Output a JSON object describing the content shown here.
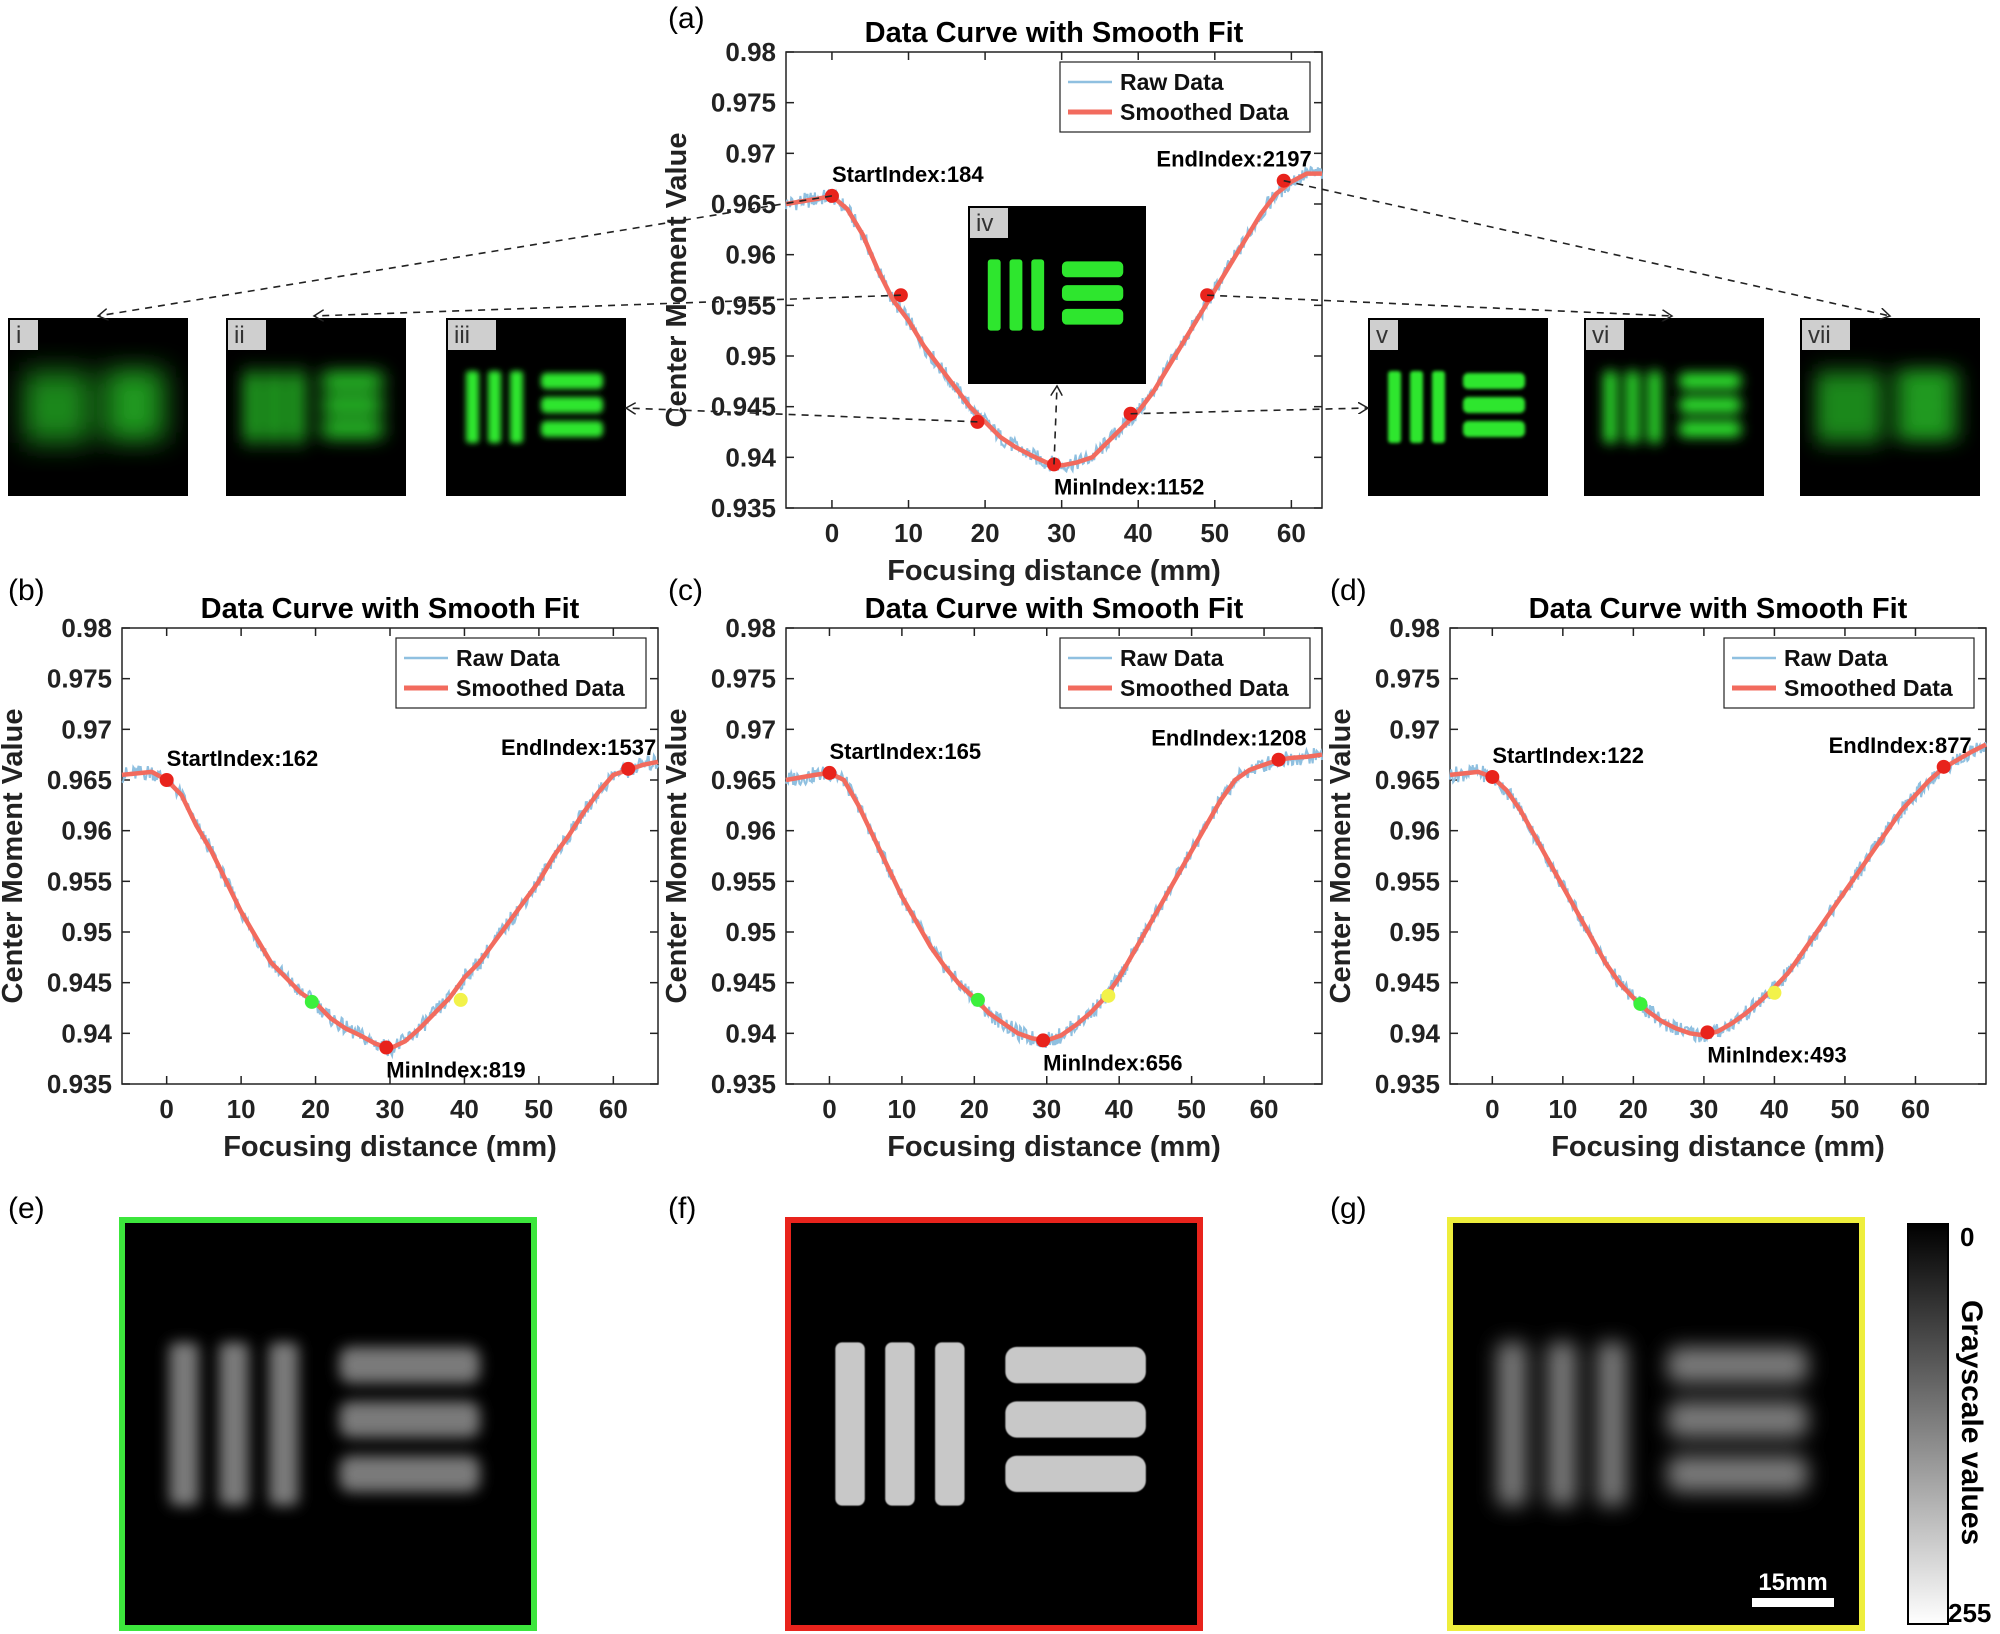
{
  "colors": {
    "raw": "#8fc0e0",
    "smooth": "#f26b5e",
    "marker_red": "#e8231c",
    "marker_green": "#3cf03c",
    "marker_yellow": "#f2f24a",
    "frame_green": "#3ce63c",
    "frame_red": "#e8231c",
    "frame_yellow": "#eeee3c"
  },
  "chart_data": [
    {
      "id": "a",
      "panel_label": "(a)",
      "type": "line",
      "title": "Data Curve with Smooth Fit",
      "xlabel": "Focusing distance (mm)",
      "ylabel": "Center Moment Value",
      "xlim": [
        -6,
        64
      ],
      "ylim": [
        0.935,
        0.98
      ],
      "xticks": [
        "0",
        "10",
        "20",
        "30",
        "40",
        "50",
        "60"
      ],
      "yticks": [
        "0.935",
        "0.94",
        "0.945",
        "0.95",
        "0.955",
        "0.96",
        "0.965",
        "0.97",
        "0.975",
        "0.98"
      ],
      "grid": false,
      "legend": {
        "placement": "top-right",
        "entries": [
          "Raw Data",
          "Smoothed Data"
        ]
      },
      "series": [
        {
          "name": "Raw Data",
          "x": [
            -6,
            -2,
            0,
            2,
            4,
            6,
            8,
            10,
            12,
            14,
            16,
            18,
            20,
            22,
            24,
            26,
            28,
            30,
            32,
            34,
            36,
            38,
            40,
            42,
            44,
            46,
            48,
            50,
            52,
            54,
            56,
            58,
            60,
            62,
            64
          ],
          "y": [
            0.965,
            0.9655,
            0.9658,
            0.9645,
            0.962,
            0.9585,
            0.9555,
            0.9535,
            0.951,
            0.949,
            0.947,
            0.945,
            0.9435,
            0.942,
            0.941,
            0.9402,
            0.9395,
            0.9392,
            0.9395,
            0.94,
            0.9415,
            0.943,
            0.9445,
            0.9465,
            0.949,
            0.9515,
            0.954,
            0.9565,
            0.959,
            0.9615,
            0.964,
            0.966,
            0.9672,
            0.968,
            0.968
          ]
        },
        {
          "name": "Smoothed Data",
          "x": [
            -6,
            -2,
            0,
            2,
            4,
            6,
            8,
            10,
            12,
            14,
            16,
            18,
            20,
            22,
            24,
            26,
            28,
            30,
            32,
            34,
            36,
            38,
            40,
            42,
            44,
            46,
            48,
            50,
            52,
            54,
            56,
            58,
            60,
            62,
            64
          ],
          "y": [
            0.965,
            0.9655,
            0.9658,
            0.9645,
            0.962,
            0.9585,
            0.9555,
            0.9535,
            0.951,
            0.949,
            0.947,
            0.945,
            0.9435,
            0.942,
            0.941,
            0.9402,
            0.9395,
            0.9392,
            0.9395,
            0.94,
            0.9415,
            0.943,
            0.9445,
            0.9465,
            0.949,
            0.9515,
            0.954,
            0.9565,
            0.959,
            0.9615,
            0.964,
            0.966,
            0.9672,
            0.968,
            0.968
          ]
        }
      ],
      "markers": [
        {
          "x": 0,
          "y": 0.9658,
          "color": "red",
          "label": "StartIndex:184"
        },
        {
          "x": 9,
          "y": 0.956,
          "color": "red",
          "label": ""
        },
        {
          "x": 19,
          "y": 0.9435,
          "color": "red",
          "label": ""
        },
        {
          "x": 29,
          "y": 0.9393,
          "color": "red",
          "label": "MinIndex:1152"
        },
        {
          "x": 39,
          "y": 0.9443,
          "color": "red",
          "label": ""
        },
        {
          "x": 49,
          "y": 0.956,
          "color": "red",
          "label": ""
        },
        {
          "x": 59,
          "y": 0.9673,
          "color": "red",
          "label": "EndIndex:2197"
        }
      ]
    },
    {
      "id": "b",
      "panel_label": "(b)",
      "type": "line",
      "title": "Data Curve with Smooth Fit",
      "xlabel": "Focusing distance (mm)",
      "ylabel": "Center Moment Value",
      "xlim": [
        -6,
        66
      ],
      "ylim": [
        0.935,
        0.98
      ],
      "xticks": [
        "0",
        "10",
        "20",
        "30",
        "40",
        "50",
        "60"
      ],
      "yticks": [
        "0.935",
        "0.94",
        "0.945",
        "0.95",
        "0.955",
        "0.96",
        "0.965",
        "0.97",
        "0.975",
        "0.98"
      ],
      "grid": false,
      "legend": {
        "placement": "top-right",
        "entries": [
          "Raw Data",
          "Smoothed Data"
        ]
      },
      "series": [
        {
          "name": "Raw Data",
          "x": [
            -6,
            -2,
            0,
            2,
            4,
            6,
            8,
            10,
            12,
            14,
            16,
            18,
            20,
            22,
            24,
            26,
            28,
            30,
            32,
            34,
            36,
            38,
            40,
            42,
            44,
            46,
            48,
            50,
            52,
            54,
            56,
            58,
            60,
            62,
            64,
            66
          ],
          "y": [
            0.9655,
            0.9658,
            0.965,
            0.9635,
            0.9605,
            0.958,
            0.955,
            0.952,
            0.9495,
            0.947,
            0.9455,
            0.944,
            0.943,
            0.9415,
            0.9405,
            0.9398,
            0.939,
            0.9385,
            0.9392,
            0.9405,
            0.942,
            0.9435,
            0.9455,
            0.947,
            0.949,
            0.951,
            0.953,
            0.955,
            0.9575,
            0.9595,
            0.9618,
            0.9638,
            0.9655,
            0.966,
            0.9665,
            0.9668
          ]
        },
        {
          "name": "Smoothed Data",
          "x": [
            -6,
            -2,
            0,
            2,
            4,
            6,
            8,
            10,
            12,
            14,
            16,
            18,
            20,
            22,
            24,
            26,
            28,
            30,
            32,
            34,
            36,
            38,
            40,
            42,
            44,
            46,
            48,
            50,
            52,
            54,
            56,
            58,
            60,
            62,
            64,
            66
          ],
          "y": [
            0.9655,
            0.9658,
            0.965,
            0.9635,
            0.9605,
            0.958,
            0.955,
            0.952,
            0.9495,
            0.947,
            0.9455,
            0.944,
            0.943,
            0.9415,
            0.9405,
            0.9398,
            0.939,
            0.9385,
            0.9392,
            0.9405,
            0.942,
            0.9435,
            0.9455,
            0.947,
            0.949,
            0.951,
            0.953,
            0.955,
            0.9575,
            0.9595,
            0.9618,
            0.9638,
            0.9655,
            0.966,
            0.9665,
            0.9668
          ]
        }
      ],
      "markers": [
        {
          "x": 0,
          "y": 0.965,
          "color": "red",
          "label": "StartIndex:162"
        },
        {
          "x": 19.5,
          "y": 0.9431,
          "color": "green",
          "label": ""
        },
        {
          "x": 29.5,
          "y": 0.9386,
          "color": "red",
          "label": "MinIndex:819"
        },
        {
          "x": 39.5,
          "y": 0.9433,
          "color": "yellow",
          "label": ""
        },
        {
          "x": 62,
          "y": 0.9661,
          "color": "red",
          "label": "EndIndex:1537"
        }
      ]
    },
    {
      "id": "c",
      "panel_label": "(c)",
      "type": "line",
      "title": "Data Curve with Smooth Fit",
      "xlabel": "Focusing distance (mm)",
      "ylabel": "Center Moment Value",
      "xlim": [
        -6,
        68
      ],
      "ylim": [
        0.935,
        0.98
      ],
      "xticks": [
        "0",
        "10",
        "20",
        "30",
        "40",
        "50",
        "60"
      ],
      "yticks": [
        "0.935",
        "0.94",
        "0.945",
        "0.95",
        "0.955",
        "0.96",
        "0.965",
        "0.97",
        "0.975",
        "0.98"
      ],
      "grid": false,
      "legend": {
        "placement": "top-right",
        "entries": [
          "Raw Data",
          "Smoothed Data"
        ]
      },
      "series": [
        {
          "name": "Raw Data",
          "x": [
            -6,
            -2,
            0,
            2,
            4,
            6,
            8,
            10,
            12,
            14,
            16,
            18,
            20,
            22,
            24,
            26,
            28,
            30,
            32,
            34,
            36,
            38,
            40,
            42,
            44,
            46,
            48,
            50,
            52,
            54,
            56,
            58,
            60,
            62,
            64,
            66,
            68
          ],
          "y": [
            0.965,
            0.9655,
            0.9657,
            0.965,
            0.9625,
            0.9595,
            0.9565,
            0.9535,
            0.951,
            0.9485,
            0.9465,
            0.9448,
            0.9435,
            0.942,
            0.941,
            0.94,
            0.9395,
            0.9393,
            0.9398,
            0.9408,
            0.942,
            0.9435,
            0.9455,
            0.948,
            0.9505,
            0.953,
            0.9555,
            0.958,
            0.9605,
            0.963,
            0.965,
            0.966,
            0.9665,
            0.967,
            0.9672,
            0.9673,
            0.9675
          ]
        },
        {
          "name": "Smoothed Data",
          "x": [
            -6,
            -2,
            0,
            2,
            4,
            6,
            8,
            10,
            12,
            14,
            16,
            18,
            20,
            22,
            24,
            26,
            28,
            30,
            32,
            34,
            36,
            38,
            40,
            42,
            44,
            46,
            48,
            50,
            52,
            54,
            56,
            58,
            60,
            62,
            64,
            66,
            68
          ],
          "y": [
            0.965,
            0.9655,
            0.9657,
            0.965,
            0.9625,
            0.9595,
            0.9565,
            0.9535,
            0.951,
            0.9485,
            0.9465,
            0.9448,
            0.9435,
            0.942,
            0.941,
            0.94,
            0.9395,
            0.9393,
            0.9398,
            0.9408,
            0.942,
            0.9435,
            0.9455,
            0.948,
            0.9505,
            0.953,
            0.9555,
            0.958,
            0.9605,
            0.963,
            0.965,
            0.966,
            0.9665,
            0.967,
            0.9672,
            0.9673,
            0.9675
          ]
        }
      ],
      "markers": [
        {
          "x": 0,
          "y": 0.9657,
          "color": "red",
          "label": "StartIndex:165"
        },
        {
          "x": 20.5,
          "y": 0.9433,
          "color": "green",
          "label": ""
        },
        {
          "x": 29.5,
          "y": 0.9393,
          "color": "red",
          "label": "MinIndex:656"
        },
        {
          "x": 38.5,
          "y": 0.9437,
          "color": "yellow",
          "label": ""
        },
        {
          "x": 62,
          "y": 0.967,
          "color": "red",
          "label": "EndIndex:1208"
        }
      ]
    },
    {
      "id": "d",
      "panel_label": "(d)",
      "type": "line",
      "title": "Data Curve with Smooth Fit",
      "xlabel": "Focusing distance (mm)",
      "ylabel": "Center Moment Value",
      "xlim": [
        -6,
        70
      ],
      "ylim": [
        0.935,
        0.98
      ],
      "xticks": [
        "0",
        "10",
        "20",
        "30",
        "40",
        "50",
        "60"
      ],
      "yticks": [
        "0.935",
        "0.94",
        "0.945",
        "0.95",
        "0.955",
        "0.96",
        "0.965",
        "0.97",
        "0.975",
        "0.98"
      ],
      "grid": false,
      "legend": {
        "placement": "top-right",
        "entries": [
          "Raw Data",
          "Smoothed Data"
        ]
      },
      "series": [
        {
          "name": "Raw Data",
          "x": [
            -6,
            -2,
            0,
            2,
            4,
            6,
            8,
            10,
            12,
            14,
            16,
            18,
            20,
            22,
            24,
            26,
            28,
            30,
            32,
            34,
            36,
            38,
            40,
            42,
            44,
            46,
            48,
            50,
            52,
            54,
            56,
            58,
            60,
            62,
            64,
            66,
            68,
            70
          ],
          "y": [
            0.9655,
            0.9658,
            0.9653,
            0.964,
            0.962,
            0.9595,
            0.957,
            0.9545,
            0.952,
            0.9495,
            0.947,
            0.945,
            0.9435,
            0.9422,
            0.9412,
            0.9405,
            0.94,
            0.9398,
            0.9402,
            0.941,
            0.942,
            0.9432,
            0.9445,
            0.946,
            0.948,
            0.95,
            0.952,
            0.954,
            0.956,
            0.958,
            0.96,
            0.962,
            0.9635,
            0.965,
            0.9662,
            0.967,
            0.9678,
            0.9685
          ]
        },
        {
          "name": "Smoothed Data",
          "x": [
            -6,
            -2,
            0,
            2,
            4,
            6,
            8,
            10,
            12,
            14,
            16,
            18,
            20,
            22,
            24,
            26,
            28,
            30,
            32,
            34,
            36,
            38,
            40,
            42,
            44,
            46,
            48,
            50,
            52,
            54,
            56,
            58,
            60,
            62,
            64,
            66,
            68,
            70
          ],
          "y": [
            0.9655,
            0.9658,
            0.9653,
            0.964,
            0.962,
            0.9595,
            0.957,
            0.9545,
            0.952,
            0.9495,
            0.947,
            0.945,
            0.9435,
            0.9422,
            0.9412,
            0.9405,
            0.94,
            0.9398,
            0.9402,
            0.941,
            0.942,
            0.9432,
            0.9445,
            0.946,
            0.948,
            0.95,
            0.952,
            0.954,
            0.956,
            0.958,
            0.96,
            0.962,
            0.9635,
            0.965,
            0.9662,
            0.967,
            0.9678,
            0.9685
          ]
        }
      ],
      "markers": [
        {
          "x": 0,
          "y": 0.9653,
          "color": "red",
          "label": "StartIndex:122"
        },
        {
          "x": 21,
          "y": 0.9429,
          "color": "green",
          "label": ""
        },
        {
          "x": 30.5,
          "y": 0.9401,
          "color": "red",
          "label": "MinIndex:493"
        },
        {
          "x": 40,
          "y": 0.944,
          "color": "yellow",
          "label": ""
        },
        {
          "x": 64,
          "y": 0.9663,
          "color": "red",
          "label": "EndIndex:877"
        }
      ]
    }
  ],
  "thumbnails": [
    {
      "label": "i",
      "blur": 14
    },
    {
      "label": "ii",
      "blur": 9
    },
    {
      "label": "iii",
      "blur": 3
    },
    {
      "label": "iv",
      "blur": 0
    },
    {
      "label": "v",
      "blur": 1.5
    },
    {
      "label": "vi",
      "blur": 6
    },
    {
      "label": "vii",
      "blur": 11
    }
  ],
  "bottom_panels": [
    {
      "panel_label": "(e)",
      "frame": "frame_green",
      "blur": 7
    },
    {
      "panel_label": "(f)",
      "frame": "frame_red",
      "blur": 0.6
    },
    {
      "panel_label": "(g)",
      "frame": "frame_yellow",
      "blur": 10
    }
  ],
  "colorbar": {
    "label": "Grayscale values",
    "min_label": "0",
    "max_label": "255"
  },
  "scalebar": {
    "label": "15mm"
  }
}
